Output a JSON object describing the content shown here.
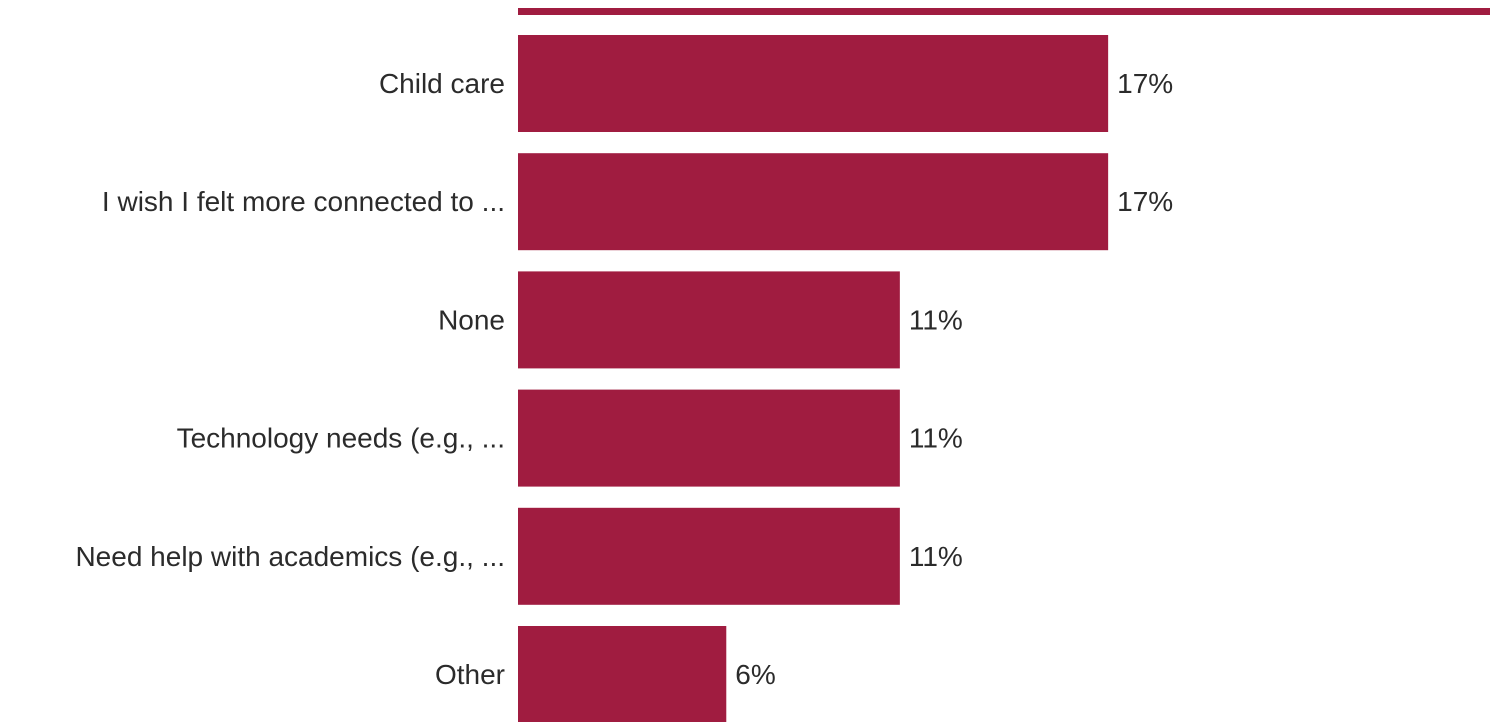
{
  "chart_data": {
    "type": "bar",
    "orientation": "horizontal",
    "categories": [
      "Child care",
      "I wish I felt more connected to ...",
      "None",
      "Technology needs (e.g., ...",
      "Need help with academics (e.g., ...",
      "Other"
    ],
    "values": [
      17,
      17,
      11,
      11,
      11,
      6
    ],
    "value_labels": [
      "17%",
      "17%",
      "11%",
      "11%",
      "11%",
      "6%"
    ],
    "value_unit": "%",
    "xlim": [
      0,
      28
    ],
    "grid": false,
    "legend": "none",
    "bar_color": "#a01c40",
    "label_color": "#2b2b2b"
  }
}
